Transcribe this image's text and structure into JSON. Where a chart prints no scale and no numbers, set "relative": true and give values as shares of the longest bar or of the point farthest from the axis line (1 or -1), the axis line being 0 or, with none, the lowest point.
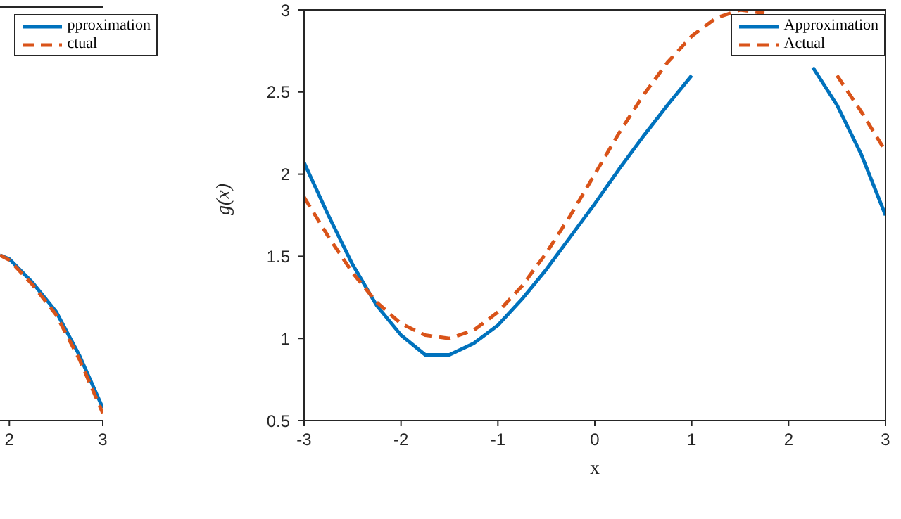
{
  "chart_data": [
    {
      "type": "line",
      "relative": true,
      "x": [
        1.9,
        2,
        2.25,
        2.5,
        2.75,
        3
      ],
      "xlim": [
        1.9,
        3
      ],
      "xticks": [
        2,
        3
      ],
      "legend": "top right",
      "series": [
        {
          "name": "pproximation",
          "color": "#0072bd",
          "line_style": "solid",
          "values": [
            1,
            0.977,
            0.833,
            0.659,
            0.394,
            0.076
          ]
        },
        {
          "name": "ctual",
          "color": "#d95319",
          "line_style": "dashed",
          "values": [
            1,
            0.97,
            0.82,
            0.64,
            0.37,
            0.045
          ]
        }
      ]
    },
    {
      "type": "line",
      "xlabel": "x",
      "ylabel": "g(x)",
      "x": [
        -3,
        -2.75,
        -2.5,
        -2.25,
        -2,
        -1.75,
        -1.5,
        -1.25,
        -1,
        -0.75,
        -0.5,
        -0.25,
        0,
        0.25,
        0.5,
        0.75,
        1,
        1.25,
        1.5,
        1.75,
        2,
        2.25,
        2.5,
        2.75,
        3
      ],
      "xlim": [
        -3,
        3
      ],
      "xticks": [
        -3,
        -2,
        -1,
        0,
        1,
        2,
        3
      ],
      "ylim": [
        0.5,
        3
      ],
      "yticks": [
        0.5,
        1,
        1.5,
        2,
        2.5,
        3
      ],
      "legend": "top right",
      "series": [
        {
          "name": "Approximation",
          "color": "#0072bd",
          "line_style": "solid",
          "values": [
            2.07,
            1.75,
            1.45,
            1.2,
            1.02,
            0.9,
            0.9,
            0.97,
            1.08,
            1.24,
            1.42,
            1.62,
            1.82,
            2.03,
            2.23,
            2.42,
            2.6,
            null,
            null,
            null,
            null,
            2.65,
            2.42,
            2.12,
            1.75
          ]
        },
        {
          "name": "Actual",
          "color": "#d95319",
          "line_style": "dashed",
          "values": [
            1.86,
            1.62,
            1.4,
            1.22,
            1.09,
            1.02,
            1.0,
            1.05,
            1.16,
            1.32,
            1.52,
            1.75,
            2.0,
            2.25,
            2.48,
            2.68,
            2.84,
            2.95,
            3.0,
            2.98,
            null,
            null,
            2.6,
            2.38,
            2.14
          ]
        }
      ]
    }
  ]
}
